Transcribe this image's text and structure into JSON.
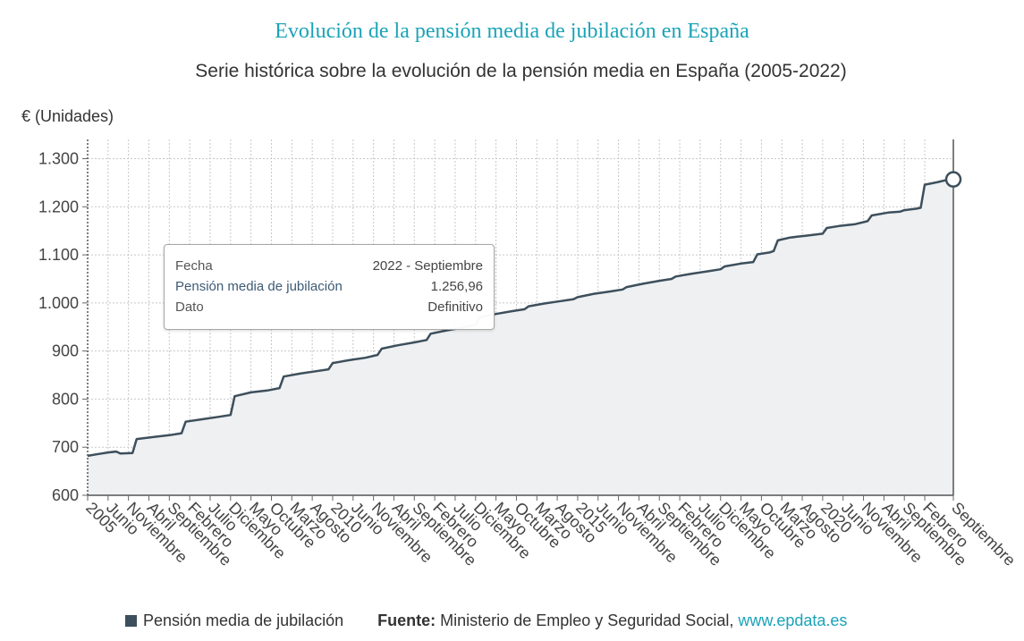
{
  "header": {
    "title": "Evolución de la pensión media de jubilación en España",
    "subtitle": "Serie histórica sobre la evolución de la pensión media en España (2005-2022)"
  },
  "tooltip": {
    "row1_label": "Fecha",
    "row1_value": "2022 - Septiembre",
    "row2_label": "Pensión media de jubilación",
    "row2_value": "1.256,96",
    "row3_label": "Dato",
    "row3_value": "Definitivo"
  },
  "footer": {
    "legend_label": "Pensión media de jubilación",
    "source_prefix": "Fuente:",
    "source_text": "Ministerio de Empleo y Seguridad Social,",
    "source_link": "www.epdata.es"
  },
  "colors": {
    "line": "#3d4f5c",
    "area": "#eef0f2",
    "grid": "#c8c8c8",
    "accent": "#1aa3b8"
  },
  "chart_data": {
    "type": "area",
    "ylabel": "€ (Unidades)",
    "ylim": [
      600,
      1340
    ],
    "yticks": [
      600,
      700,
      800,
      900,
      1000,
      1100,
      1200,
      1300
    ],
    "ytick_labels": [
      "600",
      "700",
      "800",
      "900",
      "1.000",
      "1.100",
      "1.200",
      "1.300"
    ],
    "xlim": [
      0,
      212
    ],
    "x_tick_labels": [
      {
        "m": 0,
        "label": "2005"
      },
      {
        "m": 5,
        "label": "Junio"
      },
      {
        "m": 10,
        "label": "Noviembre"
      },
      {
        "m": 15,
        "label": "Abril"
      },
      {
        "m": 20,
        "label": "Septiembre"
      },
      {
        "m": 25,
        "label": "Febrero"
      },
      {
        "m": 30,
        "label": "Julio"
      },
      {
        "m": 35,
        "label": "Diciembre"
      },
      {
        "m": 40,
        "label": "Mayo"
      },
      {
        "m": 45,
        "label": "Octubre"
      },
      {
        "m": 50,
        "label": "Marzo"
      },
      {
        "m": 55,
        "label": "Agosto"
      },
      {
        "m": 60,
        "label": "2010"
      },
      {
        "m": 65,
        "label": "Junio"
      },
      {
        "m": 70,
        "label": "Noviembre"
      },
      {
        "m": 75,
        "label": "Abril"
      },
      {
        "m": 80,
        "label": "Septiembre"
      },
      {
        "m": 85,
        "label": "Febrero"
      },
      {
        "m": 90,
        "label": "Julio"
      },
      {
        "m": 95,
        "label": "Diciembre"
      },
      {
        "m": 100,
        "label": "Mayo"
      },
      {
        "m": 105,
        "label": "Octubre"
      },
      {
        "m": 110,
        "label": "Marzo"
      },
      {
        "m": 115,
        "label": "Agosto"
      },
      {
        "m": 120,
        "label": "2015"
      },
      {
        "m": 125,
        "label": "Junio"
      },
      {
        "m": 130,
        "label": "Noviembre"
      },
      {
        "m": 135,
        "label": "Abril"
      },
      {
        "m": 140,
        "label": "Septiembre"
      },
      {
        "m": 145,
        "label": "Febrero"
      },
      {
        "m": 150,
        "label": "Julio"
      },
      {
        "m": 155,
        "label": "Diciembre"
      },
      {
        "m": 160,
        "label": "Mayo"
      },
      {
        "m": 165,
        "label": "Octubre"
      },
      {
        "m": 170,
        "label": "Marzo"
      },
      {
        "m": 175,
        "label": "Agosto"
      },
      {
        "m": 180,
        "label": "2020"
      },
      {
        "m": 185,
        "label": "Junio"
      },
      {
        "m": 190,
        "label": "Noviembre"
      },
      {
        "m": 195,
        "label": "Abril"
      },
      {
        "m": 200,
        "label": "Septiembre"
      },
      {
        "m": 205,
        "label": "Febrero"
      },
      {
        "m": 212,
        "label": "Septiembre"
      }
    ],
    "series": [
      {
        "name": "Pensión media de jubilación",
        "points": [
          [
            0,
            682
          ],
          [
            2,
            685
          ],
          [
            5,
            689
          ],
          [
            7,
            691
          ],
          [
            8,
            687
          ],
          [
            11,
            688
          ],
          [
            12,
            717
          ],
          [
            16,
            721
          ],
          [
            20,
            725
          ],
          [
            23,
            729
          ],
          [
            24,
            753
          ],
          [
            28,
            758
          ],
          [
            32,
            763
          ],
          [
            35,
            767
          ],
          [
            36,
            806
          ],
          [
            40,
            814
          ],
          [
            44,
            818
          ],
          [
            47,
            823
          ],
          [
            48,
            847
          ],
          [
            52,
            853
          ],
          [
            56,
            858
          ],
          [
            59,
            862
          ],
          [
            60,
            875
          ],
          [
            64,
            881
          ],
          [
            68,
            886
          ],
          [
            71,
            892
          ],
          [
            72,
            905
          ],
          [
            76,
            912
          ],
          [
            80,
            918
          ],
          [
            83,
            923
          ],
          [
            84,
            936
          ],
          [
            88,
            943
          ],
          [
            92,
            949
          ],
          [
            95,
            955
          ],
          [
            96,
            970
          ],
          [
            100,
            977
          ],
          [
            104,
            983
          ],
          [
            107,
            987
          ],
          [
            108,
            993
          ],
          [
            112,
            999
          ],
          [
            116,
            1004
          ],
          [
            119,
            1008
          ],
          [
            120,
            1012
          ],
          [
            124,
            1019
          ],
          [
            128,
            1024
          ],
          [
            131,
            1028
          ],
          [
            132,
            1033
          ],
          [
            136,
            1040
          ],
          [
            140,
            1046
          ],
          [
            143,
            1050
          ],
          [
            144,
            1055
          ],
          [
            148,
            1061
          ],
          [
            152,
            1066
          ],
          [
            155,
            1070
          ],
          [
            156,
            1076
          ],
          [
            160,
            1082
          ],
          [
            163,
            1085
          ],
          [
            164,
            1101
          ],
          [
            167,
            1105
          ],
          [
            168,
            1108
          ],
          [
            169,
            1130
          ],
          [
            172,
            1136
          ],
          [
            176,
            1140
          ],
          [
            180,
            1144
          ],
          [
            181,
            1156
          ],
          [
            184,
            1160
          ],
          [
            188,
            1164
          ],
          [
            191,
            1170
          ],
          [
            192,
            1182
          ],
          [
            196,
            1188
          ],
          [
            199,
            1190
          ],
          [
            200,
            1193
          ],
          [
            203,
            1196
          ],
          [
            204,
            1198
          ],
          [
            205,
            1246
          ],
          [
            208,
            1251
          ],
          [
            210,
            1255
          ],
          [
            212,
            1256.96
          ]
        ]
      }
    ],
    "highlight": {
      "m": 212,
      "value": 1256.96
    },
    "grid": true,
    "legend_position": "bottom-left"
  }
}
